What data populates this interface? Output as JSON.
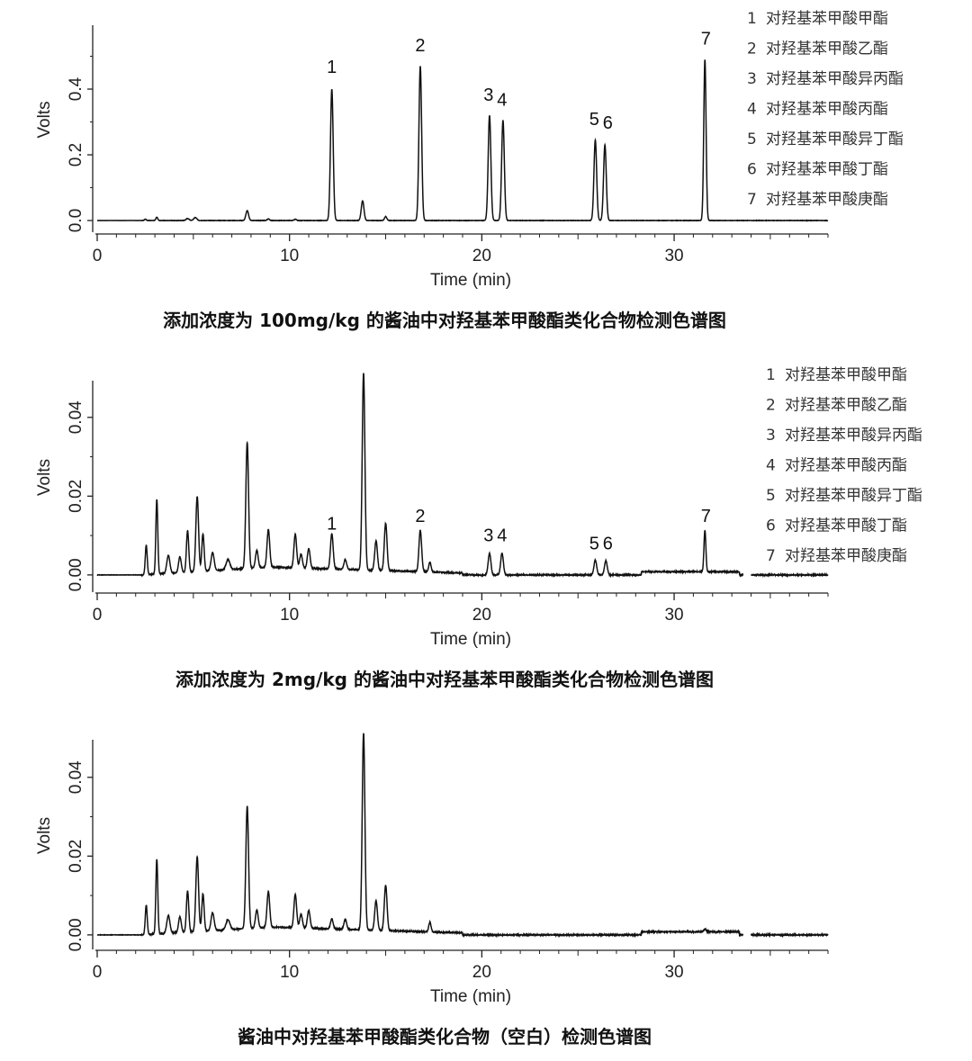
{
  "chart_data": [
    {
      "type": "line",
      "id": "p1",
      "caption": "添加浓度为 100mg/kg 的酱油中对羟基苯甲酸酯类化合物检测色谱图",
      "xlabel": "Time (min)",
      "ylabel": "Volts",
      "xlim": [
        0,
        38
      ],
      "ylim": [
        -0.03,
        0.6
      ],
      "xticks": [
        0,
        10,
        20,
        30
      ],
      "xtick_labels": [
        "0",
        "10",
        "20",
        "30"
      ],
      "yticks": [
        0.0,
        0.2,
        0.4
      ],
      "ytick_labels": [
        "0.0",
        "0.2",
        "0.4"
      ],
      "peaks": [
        {
          "t": 2.5,
          "h": 0.004,
          "w": 0.05
        },
        {
          "t": 3.1,
          "h": 0.01,
          "w": 0.05
        },
        {
          "t": 4.7,
          "h": 0.006,
          "w": 0.08
        },
        {
          "t": 5.1,
          "h": 0.009,
          "w": 0.08
        },
        {
          "t": 7.8,
          "h": 0.03,
          "w": 0.07
        },
        {
          "t": 8.9,
          "h": 0.005,
          "w": 0.06
        },
        {
          "t": 10.3,
          "h": 0.004,
          "w": 0.06
        },
        {
          "t": 12.2,
          "h": 0.4,
          "w": 0.07
        },
        {
          "t": 13.8,
          "h": 0.06,
          "w": 0.07
        },
        {
          "t": 15.0,
          "h": 0.012,
          "w": 0.06
        },
        {
          "t": 16.8,
          "h": 0.47,
          "w": 0.07
        },
        {
          "t": 20.4,
          "h": 0.32,
          "w": 0.07
        },
        {
          "t": 21.1,
          "h": 0.305,
          "w": 0.07
        },
        {
          "t": 25.9,
          "h": 0.245,
          "w": 0.07
        },
        {
          "t": 26.4,
          "h": 0.23,
          "w": 0.07
        },
        {
          "t": 31.6,
          "h": 0.49,
          "w": 0.06
        }
      ],
      "noise": 0.001,
      "peak_labels": [
        {
          "text": "1",
          "t": 12.2,
          "y": 0.45
        },
        {
          "text": "2",
          "t": 16.8,
          "y": 0.515
        },
        {
          "text": "3",
          "t": 20.35,
          "y": 0.365
        },
        {
          "text": "4",
          "t": 21.05,
          "y": 0.35
        },
        {
          "text": "5",
          "t": 25.85,
          "y": 0.29
        },
        {
          "text": "6",
          "t": 26.55,
          "y": 0.28
        },
        {
          "text": "7",
          "t": 31.65,
          "y": 0.535
        }
      ],
      "legend": [
        {
          "num": "1",
          "name": "对羟基苯甲酸甲酯"
        },
        {
          "num": "2",
          "name": "对羟基苯甲酸乙酯"
        },
        {
          "num": "3",
          "name": "对羟基苯甲酸异丙酯"
        },
        {
          "num": "4",
          "name": "对羟基苯甲酸丙酯"
        },
        {
          "num": "5",
          "name": "对羟基苯甲酸异丁酯"
        },
        {
          "num": "6",
          "name": "对羟基苯甲酸丁酯"
        },
        {
          "num": "7",
          "name": "对羟基苯甲酸庚酯"
        }
      ]
    },
    {
      "type": "line",
      "id": "p2",
      "caption": "添加浓度为 2mg/kg 的酱油中对羟基苯甲酸酯类化合物检测色谱图",
      "xlabel": "Time (min)",
      "ylabel": "Volts",
      "xlim": [
        0,
        38
      ],
      "ylim": [
        -0.003,
        0.05
      ],
      "xticks": [
        0,
        10,
        20,
        30
      ],
      "xtick_labels": [
        "0",
        "10",
        "20",
        "30"
      ],
      "yticks": [
        0.0,
        0.02,
        0.04
      ],
      "ytick_labels": [
        "0.00",
        "0.02",
        "0.04"
      ],
      "peaks": [
        {
          "t": 2.55,
          "h": 0.0075,
          "w": 0.05
        },
        {
          "t": 3.1,
          "h": 0.019,
          "w": 0.05
        },
        {
          "t": 3.7,
          "h": 0.0045,
          "w": 0.08
        },
        {
          "t": 4.3,
          "h": 0.004,
          "w": 0.07
        },
        {
          "t": 4.7,
          "h": 0.0105,
          "w": 0.06
        },
        {
          "t": 5.2,
          "h": 0.019,
          "w": 0.07
        },
        {
          "t": 5.5,
          "h": 0.0095,
          "w": 0.06
        },
        {
          "t": 6.0,
          "h": 0.0045,
          "w": 0.08
        },
        {
          "t": 6.8,
          "h": 0.0025,
          "w": 0.1
        },
        {
          "t": 7.8,
          "h": 0.032,
          "w": 0.07
        },
        {
          "t": 8.3,
          "h": 0.0045,
          "w": 0.07
        },
        {
          "t": 8.9,
          "h": 0.0095,
          "w": 0.07
        },
        {
          "t": 10.3,
          "h": 0.0085,
          "w": 0.07
        },
        {
          "t": 10.6,
          "h": 0.0035,
          "w": 0.07
        },
        {
          "t": 11.0,
          "h": 0.005,
          "w": 0.07
        },
        {
          "t": 12.2,
          "h": 0.009,
          "w": 0.07
        },
        {
          "t": 12.9,
          "h": 0.0025,
          "w": 0.07
        },
        {
          "t": 13.85,
          "h": 0.05,
          "w": 0.07
        },
        {
          "t": 14.5,
          "h": 0.0075,
          "w": 0.07
        },
        {
          "t": 15.0,
          "h": 0.012,
          "w": 0.07
        },
        {
          "t": 16.8,
          "h": 0.0105,
          "w": 0.07
        },
        {
          "t": 17.3,
          "h": 0.0025,
          "w": 0.06
        },
        {
          "t": 20.4,
          "h": 0.0055,
          "w": 0.07
        },
        {
          "t": 21.05,
          "h": 0.0055,
          "w": 0.07
        },
        {
          "t": 25.9,
          "h": 0.0038,
          "w": 0.07
        },
        {
          "t": 26.45,
          "h": 0.0036,
          "w": 0.07
        },
        {
          "t": 31.6,
          "h": 0.0105,
          "w": 0.05
        }
      ],
      "baseline_segments": [
        {
          "t0": 2.3,
          "t1": 9,
          "y0": 0.0,
          "y1": 0.002
        },
        {
          "t0": 9,
          "t1": 19,
          "y0": 0.002,
          "y1": 0.0005
        },
        {
          "t0": 28.3,
          "t1": 33.4,
          "y0": 0.0008,
          "y1": 0.0008
        }
      ],
      "gap": [
        33.6,
        34.0
      ],
      "noise": 0.00025,
      "peak_labels": [
        {
          "text": "1",
          "t": 12.2,
          "y": 0.0115
        },
        {
          "text": "2",
          "t": 16.8,
          "y": 0.0135
        },
        {
          "text": "3",
          "t": 20.35,
          "y": 0.0085
        },
        {
          "text": "4",
          "t": 21.05,
          "y": 0.0085
        },
        {
          "text": "5",
          "t": 25.85,
          "y": 0.0065
        },
        {
          "text": "6",
          "t": 26.55,
          "y": 0.0065
        },
        {
          "text": "7",
          "t": 31.65,
          "y": 0.0135
        }
      ],
      "legend": [
        {
          "num": "1",
          "name": "对羟基苯甲酸甲酯"
        },
        {
          "num": "2",
          "name": "对羟基苯甲酸乙酯"
        },
        {
          "num": "3",
          "name": "对羟基苯甲酸异丙酯"
        },
        {
          "num": "4",
          "name": "对羟基苯甲酸丙酯"
        },
        {
          "num": "5",
          "name": "对羟基苯甲酸异丁酯"
        },
        {
          "num": "6",
          "name": "对羟基苯甲酸丁酯"
        },
        {
          "num": "7",
          "name": "对羟基苯甲酸庚酯"
        }
      ]
    },
    {
      "type": "line",
      "id": "p3",
      "caption": "酱油中对羟基苯甲酸酯类化合物（空白）检测色谱图",
      "xlabel": "Time (min)",
      "ylabel": "Volts",
      "xlim": [
        0,
        38
      ],
      "ylim": [
        -0.003,
        0.05
      ],
      "xticks": [
        0,
        10,
        20,
        30
      ],
      "xtick_labels": [
        "0",
        "10",
        "20",
        "30"
      ],
      "yticks": [
        0.0,
        0.02,
        0.04
      ],
      "ytick_labels": [
        "0.00",
        "0.02",
        "0.04"
      ],
      "peaks": [
        {
          "t": 2.55,
          "h": 0.0075,
          "w": 0.05
        },
        {
          "t": 3.1,
          "h": 0.019,
          "w": 0.05
        },
        {
          "t": 3.7,
          "h": 0.0045,
          "w": 0.08
        },
        {
          "t": 4.3,
          "h": 0.004,
          "w": 0.07
        },
        {
          "t": 4.7,
          "h": 0.0105,
          "w": 0.06
        },
        {
          "t": 5.2,
          "h": 0.019,
          "w": 0.07
        },
        {
          "t": 5.5,
          "h": 0.0095,
          "w": 0.06
        },
        {
          "t": 6.0,
          "h": 0.0045,
          "w": 0.08
        },
        {
          "t": 6.8,
          "h": 0.0025,
          "w": 0.1
        },
        {
          "t": 7.8,
          "h": 0.031,
          "w": 0.07
        },
        {
          "t": 8.3,
          "h": 0.0045,
          "w": 0.07
        },
        {
          "t": 8.9,
          "h": 0.009,
          "w": 0.07
        },
        {
          "t": 10.3,
          "h": 0.0085,
          "w": 0.07
        },
        {
          "t": 10.6,
          "h": 0.0035,
          "w": 0.07
        },
        {
          "t": 11.0,
          "h": 0.0045,
          "w": 0.07
        },
        {
          "t": 12.2,
          "h": 0.0025,
          "w": 0.07
        },
        {
          "t": 12.9,
          "h": 0.0025,
          "w": 0.07
        },
        {
          "t": 13.85,
          "h": 0.05,
          "w": 0.07
        },
        {
          "t": 14.5,
          "h": 0.0075,
          "w": 0.07
        },
        {
          "t": 15.0,
          "h": 0.0115,
          "w": 0.07
        },
        {
          "t": 17.3,
          "h": 0.0025,
          "w": 0.06
        },
        {
          "t": 31.6,
          "h": 0.0008,
          "w": 0.05
        }
      ],
      "baseline_segments": [
        {
          "t0": 2.3,
          "t1": 9,
          "y0": 0.0,
          "y1": 0.002
        },
        {
          "t0": 9,
          "t1": 19,
          "y0": 0.002,
          "y1": 0.0005
        },
        {
          "t0": 28.3,
          "t1": 33.4,
          "y0": 0.0008,
          "y1": 0.0008
        }
      ],
      "gap": [
        33.6,
        34.0
      ],
      "noise": 0.00025,
      "peak_labels": [],
      "legend": []
    }
  ]
}
